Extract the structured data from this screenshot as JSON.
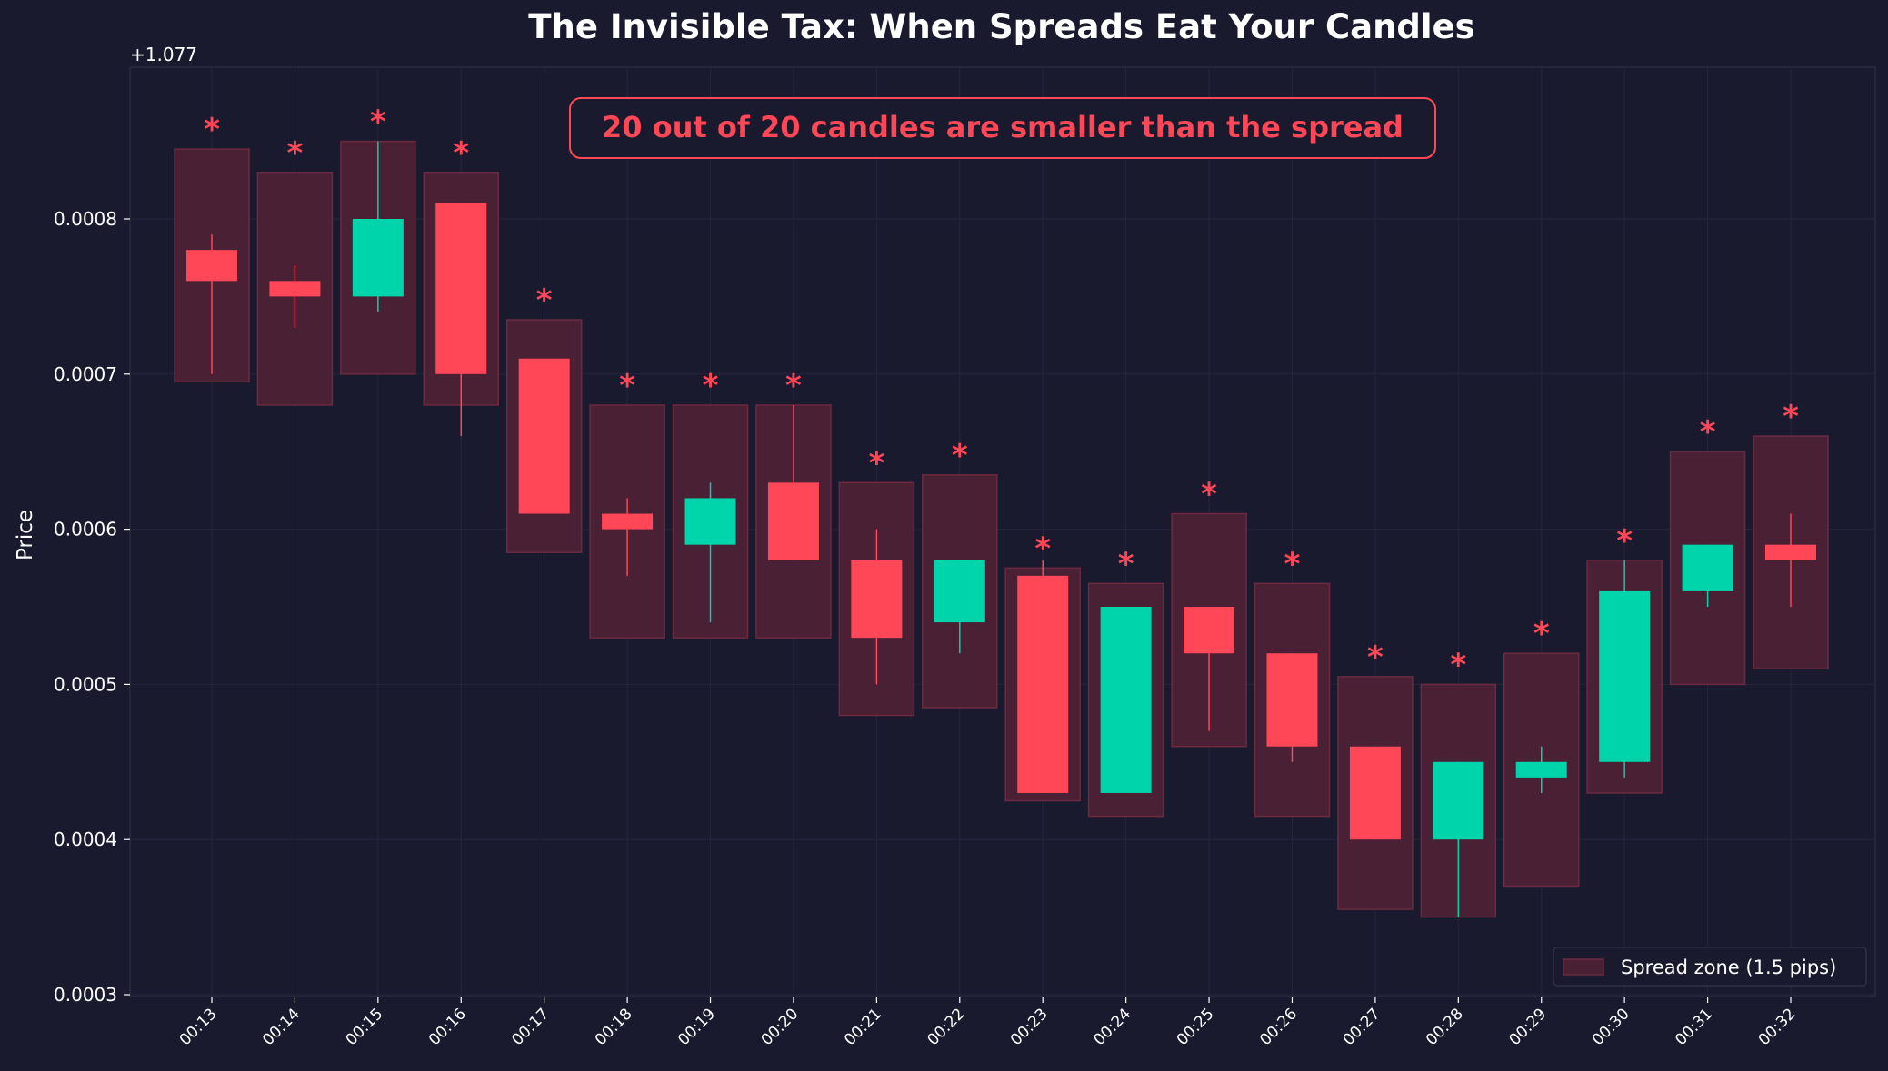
{
  "colors": {
    "background": "#1a1a2e",
    "bull": "#00d4aa",
    "bear": "#ff4757",
    "spread_fill": "#4a2035",
    "spread_edge": "#6b2a40",
    "grid": "#25253d",
    "text": "#ffffff"
  },
  "chart_data": {
    "type": "candlestick",
    "title": "The Invisible Tax: When Spreads Eat Your Candles",
    "ylabel": "Price",
    "y_offset_label": "+1.077",
    "y_offset": 1.077,
    "ylim": [
      0.0003,
      0.0009
    ],
    "yticks": [
      0.0003,
      0.0004,
      0.0005,
      0.0006,
      0.0007,
      0.0008
    ],
    "ytick_labels": [
      "0.0003",
      "0.0004",
      "0.0005",
      "0.0006",
      "0.0007",
      "0.0008"
    ],
    "grid": true,
    "annotation": "20 out of 20 candles are smaller than the spread",
    "legend": {
      "label": "Spread zone (1.5 pips)",
      "placement": "lower-right"
    },
    "spread_pips": 1.5,
    "marker": "*",
    "candles": [
      {
        "time": "00:13",
        "open": 0.00078,
        "high": 0.00079,
        "low": 0.0007,
        "close": 0.00076
      },
      {
        "time": "00:14",
        "open": 0.00076,
        "high": 0.00077,
        "low": 0.00073,
        "close": 0.00075
      },
      {
        "time": "00:15",
        "open": 0.00075,
        "high": 0.00085,
        "low": 0.00074,
        "close": 0.0008
      },
      {
        "time": "00:16",
        "open": 0.00081,
        "high": 0.00081,
        "low": 0.00066,
        "close": 0.0007
      },
      {
        "time": "00:17",
        "open": 0.00071,
        "high": 0.00071,
        "low": 0.00061,
        "close": 0.00061
      },
      {
        "time": "00:18",
        "open": 0.00061,
        "high": 0.00062,
        "low": 0.00057,
        "close": 0.0006
      },
      {
        "time": "00:19",
        "open": 0.00059,
        "high": 0.00063,
        "low": 0.00054,
        "close": 0.00062
      },
      {
        "time": "00:20",
        "open": 0.00063,
        "high": 0.00068,
        "low": 0.00058,
        "close": 0.00058
      },
      {
        "time": "00:21",
        "open": 0.00058,
        "high": 0.0006,
        "low": 0.0005,
        "close": 0.00053
      },
      {
        "time": "00:22",
        "open": 0.00054,
        "high": 0.00058,
        "low": 0.00052,
        "close": 0.00058
      },
      {
        "time": "00:23",
        "open": 0.00057,
        "high": 0.00058,
        "low": 0.00043,
        "close": 0.00043
      },
      {
        "time": "00:24",
        "open": 0.00043,
        "high": 0.00055,
        "low": 0.00043,
        "close": 0.00055
      },
      {
        "time": "00:25",
        "open": 0.00055,
        "high": 0.00055,
        "low": 0.00047,
        "close": 0.00052
      },
      {
        "time": "00:26",
        "open": 0.00052,
        "high": 0.00052,
        "low": 0.00045,
        "close": 0.00046
      },
      {
        "time": "00:27",
        "open": 0.00046,
        "high": 0.00046,
        "low": 0.0004,
        "close": 0.0004
      },
      {
        "time": "00:28",
        "open": 0.0004,
        "high": 0.00045,
        "low": 0.00035,
        "close": 0.00045
      },
      {
        "time": "00:29",
        "open": 0.00044,
        "high": 0.00046,
        "low": 0.00043,
        "close": 0.00045
      },
      {
        "time": "00:30",
        "open": 0.00045,
        "high": 0.00058,
        "low": 0.00044,
        "close": 0.00056
      },
      {
        "time": "00:31",
        "open": 0.00056,
        "high": 0.00059,
        "low": 0.00055,
        "close": 0.00059
      },
      {
        "time": "00:32",
        "open": 0.00059,
        "high": 0.00061,
        "low": 0.00055,
        "close": 0.00058
      }
    ]
  }
}
